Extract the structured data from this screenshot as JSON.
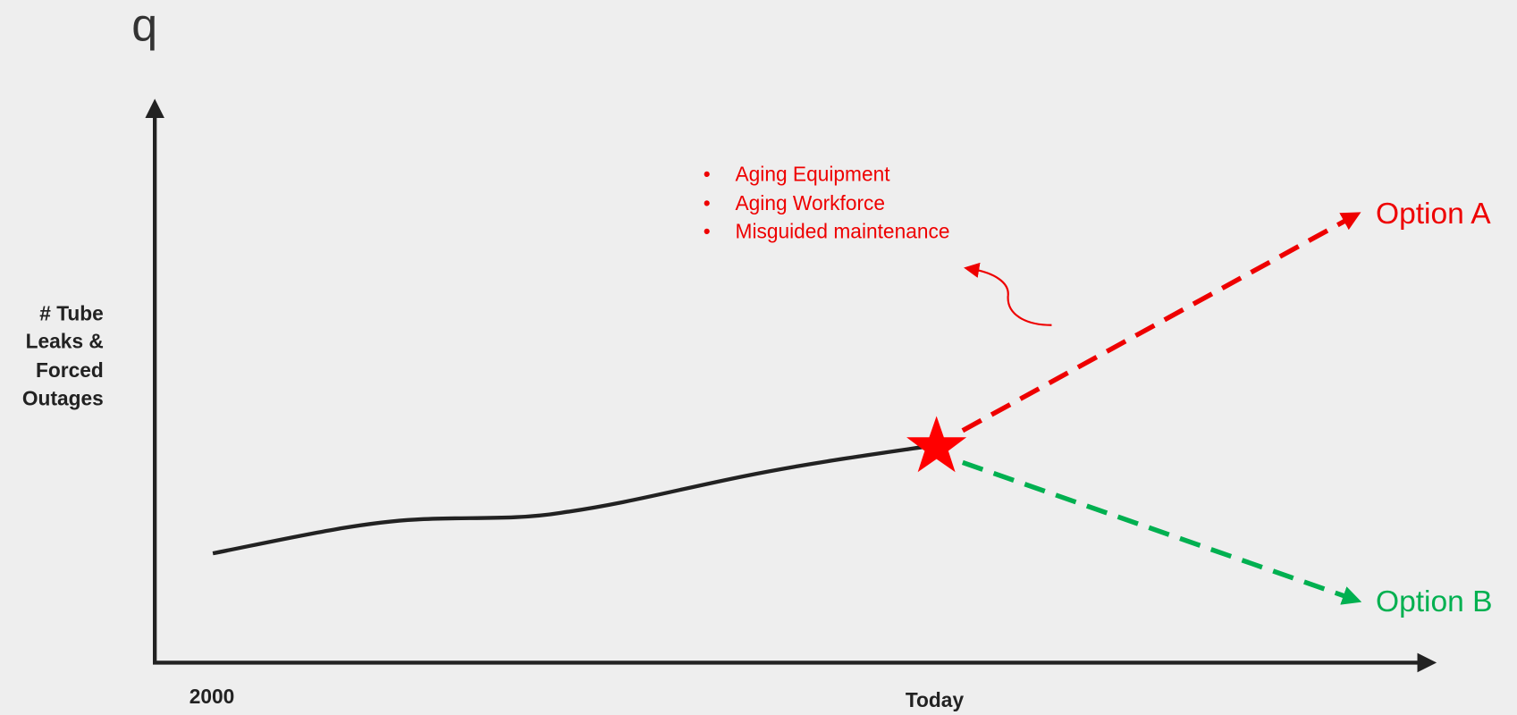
{
  "header": {
    "title": "q"
  },
  "y_axis": {
    "label_lines": [
      "# Tube",
      "Leaks &",
      "Forced",
      "Outages"
    ]
  },
  "x_axis": {
    "start_label": "2000",
    "now_label": "Today"
  },
  "causes": [
    "Aging Equipment",
    "Aging Workforce",
    "Misguided maintenance"
  ],
  "options": {
    "a": "Option A",
    "b": "Option B"
  }
}
